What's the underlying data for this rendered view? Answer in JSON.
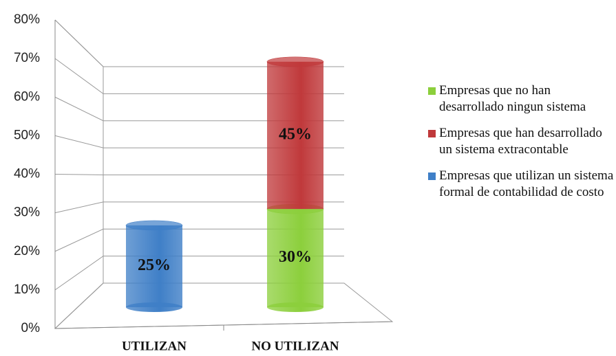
{
  "chart_data": {
    "type": "bar",
    "categories": [
      "UTILIZAN",
      "NO UTILIZAN"
    ],
    "series": [
      {
        "name": "Empresas que no han desarrollado ningun sistema",
        "color": "#8ccf3c",
        "values": [
          null,
          30
        ],
        "value_labels": [
          null,
          "30%"
        ]
      },
      {
        "name": "Empresas que han desarrollado un sistema extracontable",
        "color": "#c0393b",
        "values": [
          null,
          45
        ],
        "value_labels": [
          null,
          "45%"
        ]
      },
      {
        "name": "Empresas que utilizan un sistema formal de contabilidad de costo",
        "color": "#3f7fc7",
        "values": [
          25,
          null
        ],
        "value_labels": [
          "25%",
          null
        ]
      }
    ],
    "stacked": true,
    "ylim": [
      0,
      80
    ],
    "yticks": [
      {
        "value": 0,
        "label": "0%"
      },
      {
        "value": 10,
        "label": "10%"
      },
      {
        "value": 20,
        "label": "20%"
      },
      {
        "value": 30,
        "label": "30%"
      },
      {
        "value": 40,
        "label": "40%"
      },
      {
        "value": 50,
        "label": "50%"
      },
      {
        "value": 60,
        "label": "60%"
      },
      {
        "value": 70,
        "label": "70%"
      },
      {
        "value": 80,
        "label": "80%"
      }
    ],
    "grid": true,
    "legend": "right"
  }
}
